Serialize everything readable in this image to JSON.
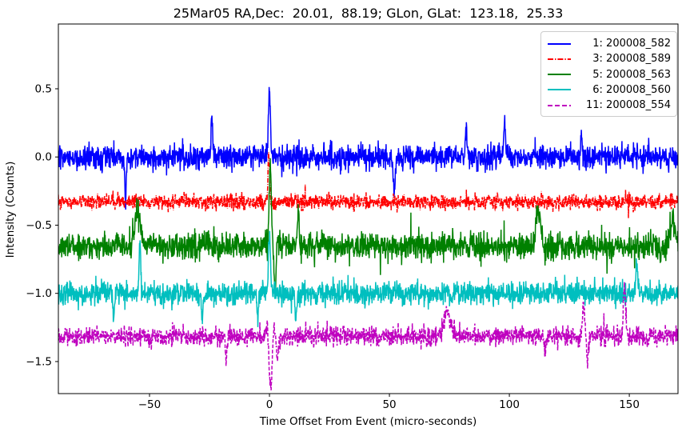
{
  "figure": {
    "background": "#ffffff",
    "text_color": "#000000",
    "spine_color": "#000000"
  },
  "chart_data": {
    "type": "line",
    "title": "25Mar05 RA,Dec:  20.01,  88.19; GLon, GLat:  123.18,  25.33",
    "xlabel": "Time Offset From Event (micro-seconds)",
    "ylabel": "Intensity (Counts)",
    "xlim": [
      -88,
      170.3
    ],
    "ylim": [
      -1.735,
      0.975
    ],
    "xticks": [
      -50,
      0,
      50,
      100,
      150
    ],
    "xtick_labels": [
      "−50",
      "0",
      "50",
      "100",
      "150"
    ],
    "yticks": [
      0.5,
      0.0,
      -0.5,
      -1.0,
      -1.5
    ],
    "ytick_labels": [
      "0.5",
      "0.0",
      "−0.5",
      "−1.0",
      "−1.5"
    ],
    "grid": false,
    "legend_position": "upper right",
    "n_points": 2200,
    "series": [
      {
        "name": " 1: 200008_582",
        "color": "#0000ff",
        "linestyle": "solid",
        "baseline": 0.0,
        "noise_sigma": 0.044,
        "seed": 101,
        "spikes": [
          {
            "x": -60,
            "amp": -0.3,
            "w": 0.35
          },
          {
            "x": -24,
            "amp": 0.29,
            "w": 0.35
          },
          {
            "x": 0,
            "amp": 0.5,
            "w": 0.4
          },
          {
            "x": 52,
            "amp": -0.28,
            "w": 0.35
          },
          {
            "x": 82,
            "amp": 0.22,
            "w": 0.3
          },
          {
            "x": 98,
            "amp": 0.26,
            "w": 0.35
          },
          {
            "x": 130,
            "amp": 0.17,
            "w": 0.3
          }
        ]
      },
      {
        "name": " 3: 200008_589",
        "color": "#ff0000",
        "linestyle": "dashdot",
        "baseline": -0.33,
        "noise_sigma": 0.027,
        "seed": 202,
        "spikes": [
          {
            "x": -0.3,
            "amp": 0.35,
            "w": 0.35
          }
        ]
      },
      {
        "name": " 5: 200008_563",
        "color": "#008000",
        "linestyle": "solid",
        "baseline": -0.655,
        "noise_sigma": 0.048,
        "seed": 303,
        "spikes": [
          {
            "x": -55,
            "amp": 0.25,
            "w": 1.2
          },
          {
            "x": 0.3,
            "amp": 0.6,
            "w": 0.45
          },
          {
            "x": 2.3,
            "amp": -0.3,
            "w": 0.4
          },
          {
            "x": 12,
            "amp": 0.3,
            "w": 0.35
          },
          {
            "x": 112,
            "amp": 0.24,
            "w": 1.0
          },
          {
            "x": 168,
            "amp": 0.2,
            "w": 1.0
          }
        ]
      },
      {
        "name": " 6: 200008_560",
        "color": "#00bfbf",
        "linestyle": "solid",
        "baseline": -1.0,
        "noise_sigma": 0.042,
        "seed": 404,
        "spikes": [
          {
            "x": -65,
            "amp": -0.2,
            "w": 0.3
          },
          {
            "x": -54,
            "amp": 0.4,
            "w": 0.35
          },
          {
            "x": -28,
            "amp": -0.2,
            "w": 0.3
          },
          {
            "x": -5,
            "amp": -0.18,
            "w": 0.3
          },
          {
            "x": 0,
            "amp": 0.47,
            "w": 0.4
          },
          {
            "x": 11,
            "amp": -0.2,
            "w": 0.3
          },
          {
            "x": 153,
            "amp": 0.2,
            "w": 0.4
          }
        ]
      },
      {
        "name": "11: 200008_554",
        "color": "#bf00bf",
        "linestyle": "dashed",
        "baseline": -1.315,
        "noise_sigma": 0.034,
        "seed": 505,
        "spikes": [
          {
            "x": -18,
            "amp": -0.2,
            "w": 0.3
          },
          {
            "x": -0.8,
            "amp": 0.2,
            "w": 0.5
          },
          {
            "x": 0.4,
            "amp": -0.36,
            "w": 0.9
          },
          {
            "x": 1.8,
            "amp": 0.15,
            "w": 0.5
          },
          {
            "x": 3.2,
            "amp": -0.14,
            "w": 0.5
          },
          {
            "x": 74,
            "amp": 0.18,
            "w": 1.5
          },
          {
            "x": 115,
            "amp": -0.13,
            "w": 0.4
          },
          {
            "x": 131,
            "amp": 0.21,
            "w": 0.6
          },
          {
            "x": 132.5,
            "amp": -0.16,
            "w": 0.5
          },
          {
            "x": 148,
            "amp": 0.36,
            "w": 0.5
          }
        ]
      }
    ]
  }
}
